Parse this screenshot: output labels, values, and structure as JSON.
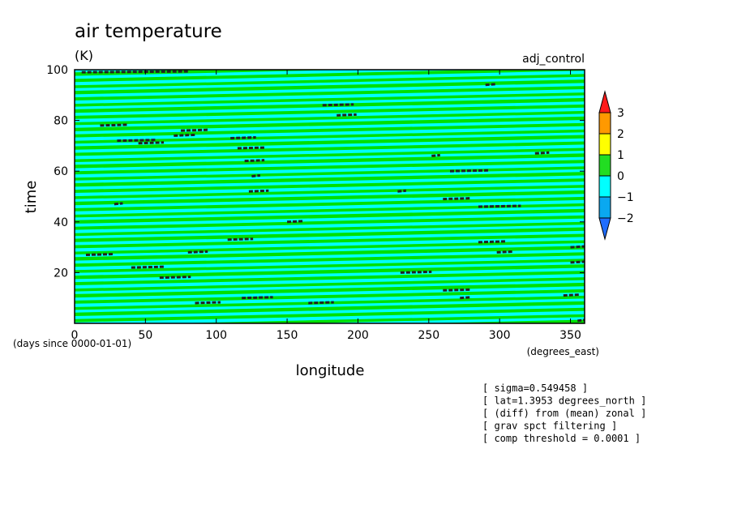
{
  "chart_data": {
    "type": "heatmap",
    "title": "air temperature",
    "units": "(K)",
    "experiment": "adj_control",
    "xlabel": "longitude",
    "x_unit_note": "(degrees_east)",
    "ylabel": "time",
    "y_unit_note": "(days since 0000-01-01)",
    "xlim": [
      0,
      360
    ],
    "ylim": [
      0,
      100
    ],
    "x_ticks": [
      "0",
      "50",
      "100",
      "150",
      "200",
      "250",
      "300",
      "350"
    ],
    "y_ticks": [
      "20",
      "40",
      "60",
      "80",
      "100"
    ],
    "colorbar": {
      "levels": [
        "−2",
        "−1",
        "0",
        "1",
        "2",
        "3"
      ],
      "colors": [
        "#1f6dff",
        "#0aa8f0",
        "#00ffff",
        "#22dd22",
        "#ffff00",
        "#ff9900",
        "#ff1a1a"
      ]
    },
    "field_pattern": {
      "background": "#00e000",
      "stripe_color": "#00ffff",
      "description_values": "alternating bands between -1 K and +1 K tilted slightly in longitude-time, with scattered dark dashed contours marking small patches"
    },
    "dark_patches": [
      [
        5,
        99,
        75
      ],
      [
        18,
        78,
        20
      ],
      [
        30,
        72,
        28
      ],
      [
        45,
        71,
        18
      ],
      [
        75,
        76,
        20
      ],
      [
        70,
        74,
        15
      ],
      [
        110,
        73,
        18
      ],
      [
        115,
        69,
        20
      ],
      [
        120,
        64,
        14
      ],
      [
        123,
        52,
        14
      ],
      [
        125,
        58,
        6
      ],
      [
        150,
        40,
        12
      ],
      [
        165,
        8,
        18
      ],
      [
        175,
        86,
        22
      ],
      [
        185,
        82,
        14
      ],
      [
        228,
        52,
        6
      ],
      [
        230,
        20,
        22
      ],
      [
        252,
        66,
        6
      ],
      [
        265,
        60,
        28
      ],
      [
        260,
        49,
        20
      ],
      [
        285,
        46,
        30
      ],
      [
        290,
        94,
        8
      ],
      [
        285,
        32,
        20
      ],
      [
        298,
        28,
        12
      ],
      [
        325,
        67,
        10
      ],
      [
        350,
        30,
        18
      ],
      [
        350,
        24,
        20
      ],
      [
        345,
        11,
        12
      ],
      [
        355,
        1,
        12
      ],
      [
        28,
        47,
        6
      ],
      [
        60,
        18,
        22
      ],
      [
        40,
        22,
        24
      ],
      [
        8,
        27,
        20
      ],
      [
        80,
        28,
        14
      ],
      [
        85,
        8,
        18
      ],
      [
        108,
        33,
        18
      ],
      [
        118,
        10,
        22
      ],
      [
        260,
        13,
        20
      ],
      [
        272,
        10,
        8
      ]
    ],
    "annotations": [
      "[ sigma=0.549458 ]",
      "[ lat=1.3953 degrees_north ]",
      "[ (diff) from (mean) zonal ]",
      "[ grav spct filtering ]",
      "[ comp threshold = 0.0001 ]"
    ]
  }
}
